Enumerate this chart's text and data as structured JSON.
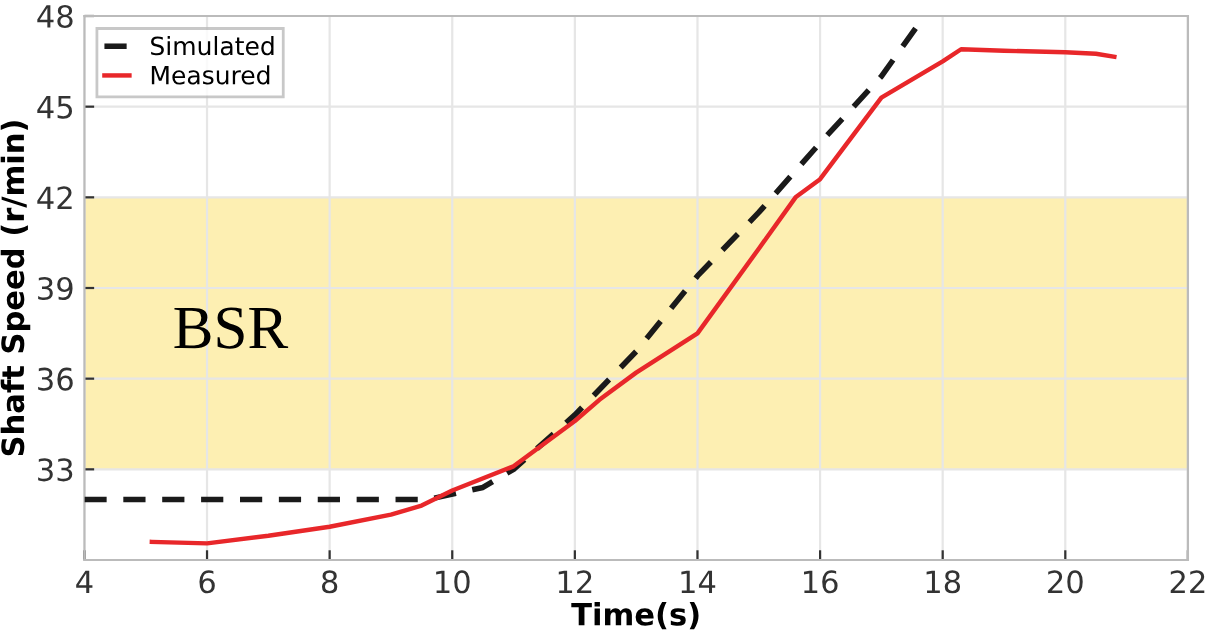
{
  "chart_data": {
    "type": "line",
    "xlabel": "Time(s)",
    "ylabel": "Shaft Speed (r/min)",
    "xlim": [
      4,
      22
    ],
    "xticks": [
      4,
      6,
      8,
      10,
      12,
      14,
      16,
      18,
      20,
      22
    ],
    "ylim": [
      30,
      48
    ],
    "yticks": [
      33,
      36,
      39,
      42,
      45,
      48
    ],
    "grid": true,
    "legend": "top left",
    "bands": [
      {
        "axis": "y",
        "from": 33,
        "to": 42,
        "label": "BSR",
        "color": "#fdefb2"
      }
    ],
    "series": [
      {
        "name": "Simulated",
        "color": "#1a1a1a",
        "line_style": "dashed",
        "x": [
          4,
          9.6,
          10.5,
          11,
          12,
          13,
          14,
          15,
          16,
          17,
          17.7
        ],
        "values": [
          32,
          32,
          32.4,
          33,
          34.8,
          36.9,
          39.4,
          41.5,
          43.8,
          46.0,
          48
        ]
      },
      {
        "name": "Measured",
        "color": "#e8272a",
        "line_style": "solid",
        "x": [
          5.1,
          6,
          7,
          8,
          9,
          9.5,
          10,
          11,
          12,
          12.4,
          13,
          14,
          15,
          15.6,
          16,
          17,
          18,
          18.3,
          19,
          20,
          20.5,
          20.8
        ],
        "values": [
          30.6,
          30.55,
          30.8,
          31.1,
          31.5,
          31.8,
          32.3,
          33.1,
          34.6,
          35.3,
          36.2,
          37.5,
          40.3,
          42.0,
          42.6,
          45.3,
          46.5,
          46.9,
          46.85,
          46.8,
          46.75,
          46.65
        ]
      }
    ]
  }
}
